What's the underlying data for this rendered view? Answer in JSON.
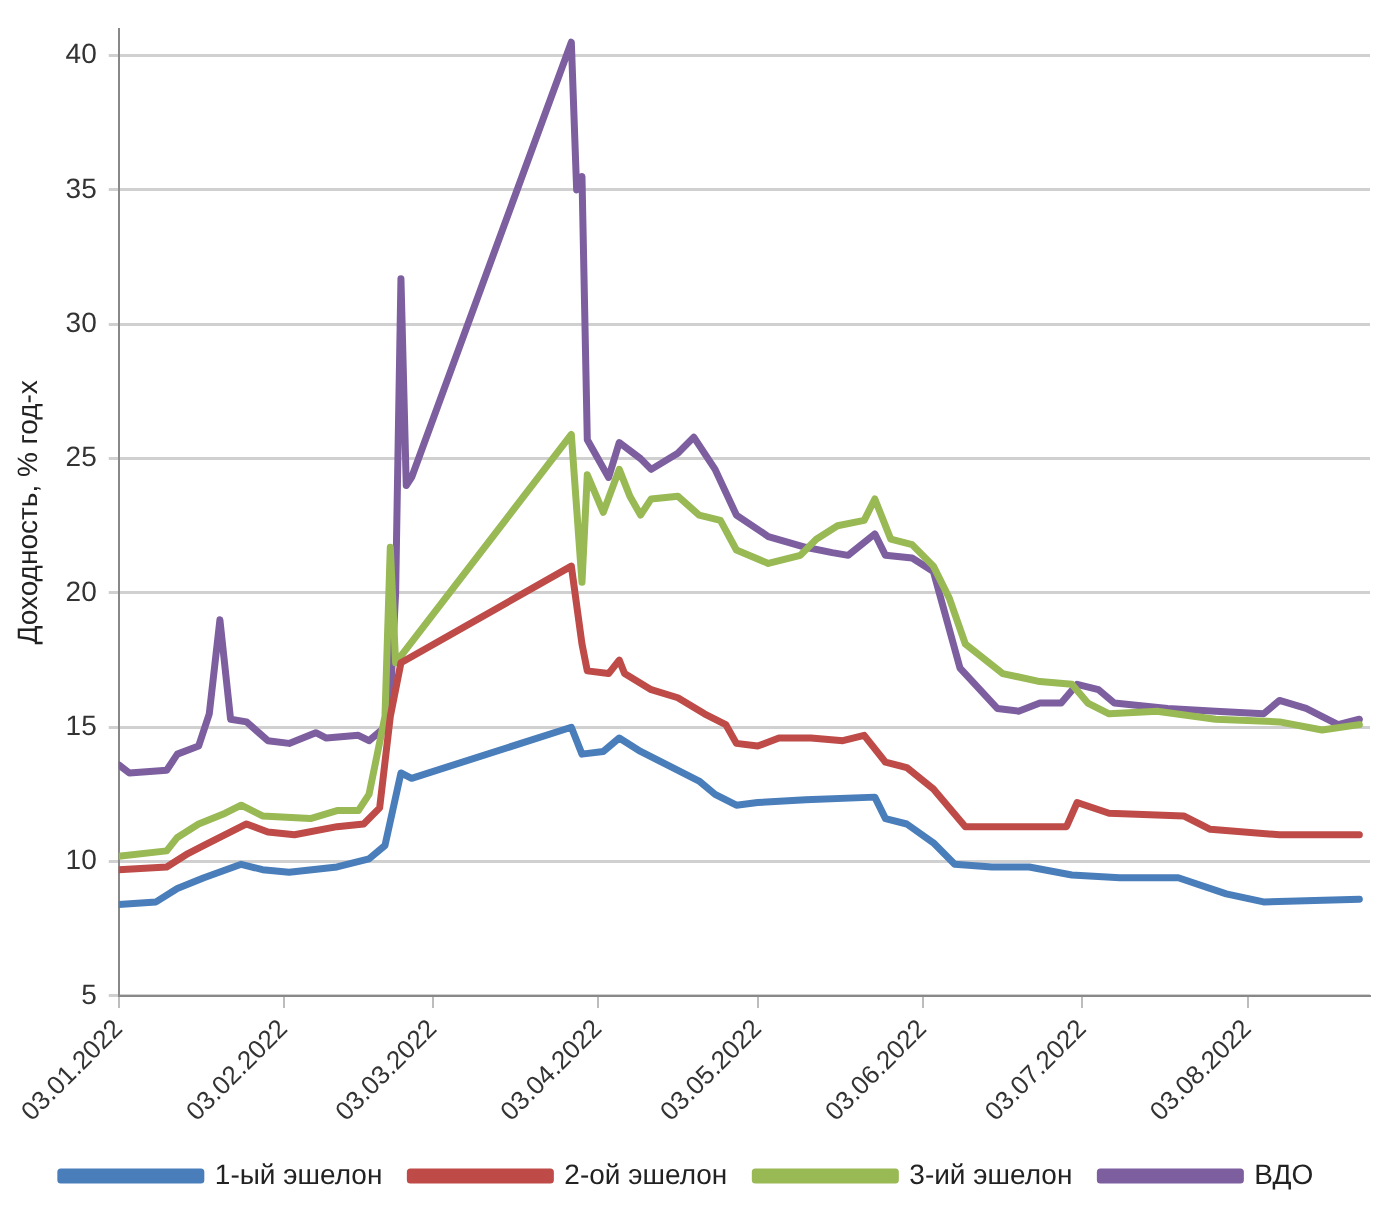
{
  "chart_data": {
    "type": "line",
    "ylabel": "Доходность, % год-х",
    "ylim": [
      5,
      41
    ],
    "yticks": [
      5,
      10,
      15,
      20,
      25,
      30,
      35,
      40
    ],
    "xlim": [
      "2022-01-03",
      "2022-08-26"
    ],
    "xticks": [
      {
        "value": "2022-01-03",
        "label": "03.01.2022"
      },
      {
        "value": "2022-02-03",
        "label": "03.02.2022"
      },
      {
        "value": "2022-03-03",
        "label": "03.03.2022"
      },
      {
        "value": "2022-04-03",
        "label": "03.04.2022"
      },
      {
        "value": "2022-05-03",
        "label": "03.05.2022"
      },
      {
        "value": "2022-06-03",
        "label": "03.06.2022"
      },
      {
        "value": "2022-07-03",
        "label": "03.07.2022"
      },
      {
        "value": "2022-08-03",
        "label": "03.08.2022"
      }
    ],
    "grid": "y",
    "legend": "bottom",
    "series": [
      {
        "name": "1-ый эшелон",
        "color": "#4a7ebb",
        "x": [
          "2022-01-03",
          "2022-01-10",
          "2022-01-14",
          "2022-01-19",
          "2022-01-26",
          "2022-01-30",
          "2022-02-04",
          "2022-02-13",
          "2022-02-19",
          "2022-02-22",
          "2022-02-25",
          "2022-02-27",
          "2022-03-29",
          "2022-03-31",
          "2022-04-04",
          "2022-04-07",
          "2022-04-11",
          "2022-04-16",
          "2022-04-22",
          "2022-04-25",
          "2022-04-29",
          "2022-05-03",
          "2022-05-12",
          "2022-05-25",
          "2022-05-27",
          "2022-05-31",
          "2022-06-05",
          "2022-06-09",
          "2022-06-16",
          "2022-06-23",
          "2022-07-01",
          "2022-07-10",
          "2022-07-21",
          "2022-07-30",
          "2022-08-06",
          "2022-08-24"
        ],
        "values": [
          8.4,
          8.5,
          9.0,
          9.4,
          9.9,
          9.7,
          9.6,
          9.8,
          10.1,
          10.6,
          13.3,
          13.1,
          15.0,
          14.0,
          14.1,
          14.6,
          14.1,
          13.6,
          13.0,
          12.5,
          12.1,
          12.2,
          12.3,
          12.4,
          11.6,
          11.4,
          10.7,
          9.9,
          9.8,
          9.8,
          9.5,
          9.4,
          9.4,
          8.8,
          8.5,
          8.6
        ]
      },
      {
        "name": "2-ой эшелон",
        "color": "#be4b48",
        "x": [
          "2022-01-03",
          "2022-01-12",
          "2022-01-16",
          "2022-01-19",
          "2022-01-23",
          "2022-01-27",
          "2022-01-31",
          "2022-02-05",
          "2022-02-13",
          "2022-02-18",
          "2022-02-21",
          "2022-02-23",
          "2022-02-25",
          "2022-03-29",
          "2022-03-31",
          "2022-04-01",
          "2022-04-05",
          "2022-04-07",
          "2022-04-08",
          "2022-04-13",
          "2022-04-18",
          "2022-04-23",
          "2022-04-27",
          "2022-04-29",
          "2022-05-03",
          "2022-05-07",
          "2022-05-13",
          "2022-05-19",
          "2022-05-23",
          "2022-05-27",
          "2022-05-31",
          "2022-06-05",
          "2022-06-11",
          "2022-06-16",
          "2022-06-30",
          "2022-07-02",
          "2022-07-08",
          "2022-07-22",
          "2022-07-27",
          "2022-08-09",
          "2022-08-24"
        ],
        "values": [
          9.7,
          9.8,
          10.3,
          10.6,
          11.0,
          11.4,
          11.1,
          11.0,
          11.3,
          11.4,
          12.0,
          15.4,
          17.4,
          21.0,
          18.1,
          17.1,
          17.0,
          17.5,
          17.0,
          16.4,
          16.1,
          15.5,
          15.1,
          14.4,
          14.3,
          14.6,
          14.6,
          14.5,
          14.7,
          13.7,
          13.5,
          12.7,
          11.3,
          11.3,
          11.3,
          12.2,
          11.8,
          11.7,
          11.2,
          11.0,
          11.0
        ]
      },
      {
        "name": "3-ий эшелон",
        "color": "#98b954",
        "x": [
          "2022-01-03",
          "2022-01-12",
          "2022-01-14",
          "2022-01-18",
          "2022-01-23",
          "2022-01-26",
          "2022-01-30",
          "2022-02-08",
          "2022-02-13",
          "2022-02-17",
          "2022-02-19",
          "2022-02-22",
          "2022-02-23",
          "2022-02-24",
          "2022-03-29",
          "2022-03-31",
          "2022-04-01",
          "2022-04-04",
          "2022-04-07",
          "2022-04-09",
          "2022-04-11",
          "2022-04-13",
          "2022-04-18",
          "2022-04-22",
          "2022-04-26",
          "2022-04-29",
          "2022-05-05",
          "2022-05-11",
          "2022-05-14",
          "2022-05-18",
          "2022-05-23",
          "2022-05-25",
          "2022-05-28",
          "2022-06-01",
          "2022-06-05",
          "2022-06-08",
          "2022-06-11",
          "2022-06-18",
          "2022-06-25",
          "2022-07-01",
          "2022-07-04",
          "2022-07-08",
          "2022-07-17",
          "2022-07-28",
          "2022-08-09",
          "2022-08-17",
          "2022-08-24"
        ],
        "values": [
          10.2,
          10.4,
          10.9,
          11.4,
          11.8,
          12.1,
          11.7,
          11.6,
          11.9,
          11.9,
          12.5,
          15.4,
          21.7,
          17.4,
          25.9,
          20.4,
          24.4,
          23.0,
          24.6,
          23.6,
          22.9,
          23.5,
          23.6,
          22.9,
          22.7,
          21.6,
          21.1,
          21.4,
          22.0,
          22.5,
          22.7,
          23.5,
          22.0,
          21.8,
          21.0,
          19.8,
          18.1,
          17.0,
          16.7,
          16.6,
          15.9,
          15.5,
          15.6,
          15.3,
          15.2,
          14.9,
          15.1
        ]
      },
      {
        "name": "ВДО",
        "color": "#7d5fa0",
        "x": [
          "2022-01-03",
          "2022-01-05",
          "2022-01-12",
          "2022-01-14",
          "2022-01-18",
          "2022-01-20",
          "2022-01-22",
          "2022-01-24",
          "2022-01-27",
          "2022-01-31",
          "2022-02-04",
          "2022-02-09",
          "2022-02-11",
          "2022-02-17",
          "2022-02-19",
          "2022-02-22",
          "2022-02-23",
          "2022-02-24",
          "2022-02-25",
          "2022-02-26",
          "2022-02-27",
          "2022-03-29",
          "2022-03-30",
          "2022-03-31",
          "2022-04-01",
          "2022-04-05",
          "2022-04-07",
          "2022-04-11",
          "2022-04-13",
          "2022-04-18",
          "2022-04-21",
          "2022-04-25",
          "2022-04-29",
          "2022-05-05",
          "2022-05-12",
          "2022-05-17",
          "2022-05-20",
          "2022-05-25",
          "2022-05-27",
          "2022-06-01",
          "2022-06-05",
          "2022-06-10",
          "2022-06-17",
          "2022-06-21",
          "2022-06-25",
          "2022-06-29",
          "2022-07-02",
          "2022-07-06",
          "2022-07-09",
          "2022-07-19",
          "2022-07-28",
          "2022-08-06",
          "2022-08-09",
          "2022-08-14",
          "2022-08-20",
          "2022-08-24"
        ],
        "values": [
          13.6,
          13.3,
          13.4,
          14.0,
          14.3,
          15.5,
          19.0,
          15.3,
          15.2,
          14.5,
          14.4,
          14.8,
          14.6,
          14.7,
          14.5,
          15.0,
          16.0,
          20.0,
          31.7,
          24.0,
          24.3,
          40.5,
          35.0,
          35.5,
          25.7,
          24.3,
          25.6,
          25.0,
          24.6,
          25.2,
          25.8,
          24.6,
          22.9,
          22.1,
          21.7,
          21.5,
          21.4,
          22.2,
          21.4,
          21.3,
          20.8,
          17.2,
          15.7,
          15.6,
          15.9,
          15.9,
          16.6,
          16.4,
          15.9,
          15.7,
          15.6,
          15.5,
          16.0,
          15.7,
          15.1,
          15.3
        ]
      }
    ]
  }
}
